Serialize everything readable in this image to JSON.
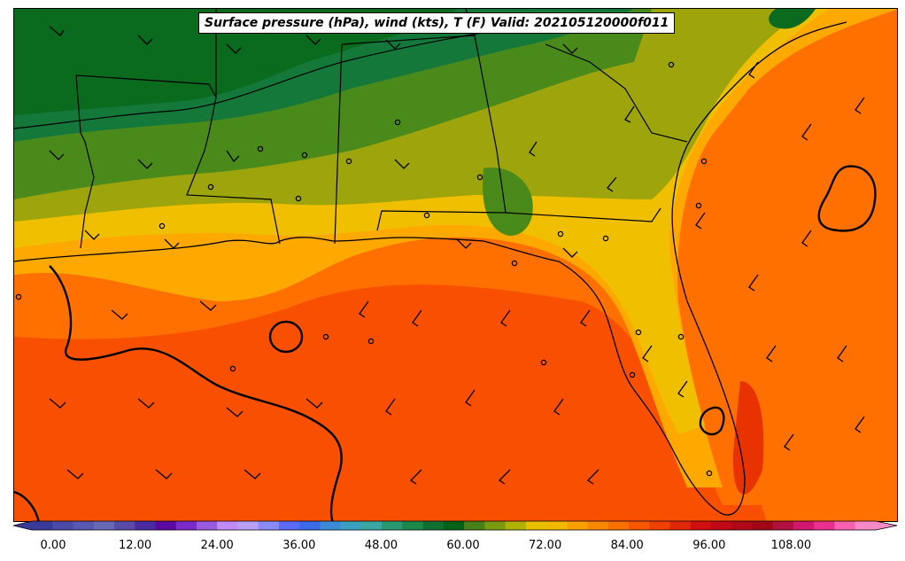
{
  "title": "Surface pressure (hPa), wind (kts), T (F) Valid: 202105120000f011",
  "colorbar": {
    "tick_labels": [
      "0.00",
      "12.00",
      "24.00",
      "36.00",
      "48.00",
      "60.00",
      "72.00",
      "84.00",
      "96.00",
      "108.00"
    ],
    "colors": [
      "#3a3a9a",
      "#4a4aa8",
      "#5858b0",
      "#6868b8",
      "#5a4aa8",
      "#4a2aa0",
      "#5a0aa0",
      "#7a2ac8",
      "#9a5ae0",
      "#c08af8",
      "#b8a0f8",
      "#8a8af8",
      "#5a6af8",
      "#3a6ae8",
      "#3a8ad8",
      "#3aa0c0",
      "#3aa8a0",
      "#2a9870",
      "#1a8848",
      "#107030",
      "#006418",
      "#4a8018",
      "#7a9a10",
      "#b0b008",
      "#e8c000",
      "#f0b800",
      "#f8a000",
      "#f88800",
      "#f87000",
      "#f85800",
      "#f04000",
      "#e02808",
      "#d01010",
      "#c00818",
      "#b00818",
      "#a00818",
      "#b01040",
      "#d01870",
      "#e83090",
      "#f860b0",
      "#f888c8"
    ]
  },
  "temperature_colors": {
    "dark_green": "#0a6a1e",
    "green": "#14783a",
    "mid_green": "#2e7d1e",
    "olive_green": "#4a8a1a",
    "olive": "#9ea40c",
    "yellow": "#f0c000",
    "light_orange": "#ffa800",
    "orange": "#ff7000",
    "red_orange": "#f85000",
    "deep_red_orange": "#e83200"
  },
  "legend_units": "T (F)"
}
